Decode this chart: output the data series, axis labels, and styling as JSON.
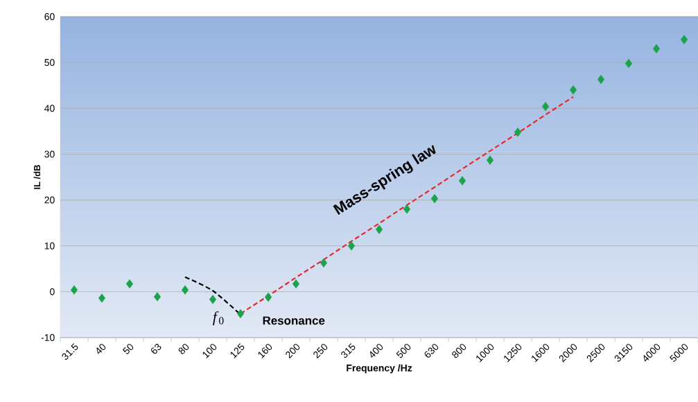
{
  "chart_data": {
    "type": "scatter",
    "xlabel": "Frequency /Hz",
    "ylabel": "IL /dB",
    "categories": [
      "31.5",
      "40",
      "50",
      "63",
      "80",
      "100",
      "125",
      "160",
      "200",
      "250",
      "315",
      "400",
      "500",
      "630",
      "800",
      "1000",
      "1250",
      "1600",
      "2000",
      "2500",
      "3150",
      "4000",
      "5000"
    ],
    "series": [
      {
        "color": "#1aa34a",
        "marker": "diamond",
        "values": [
          0.4,
          -1.4,
          1.7,
          -1.1,
          0.4,
          -1.7,
          -4.8,
          -1.2,
          1.7,
          6.3,
          10,
          13.6,
          18,
          20.3,
          24.2,
          28.7,
          34.8,
          40.4,
          44,
          46.3,
          49.8,
          53,
          55
        ]
      },
      {
        "type": "line",
        "color": "#e8272a",
        "line_style": "dashed",
        "marker": "none",
        "values": [
          null,
          null,
          null,
          null,
          null,
          null,
          -4.8,
          -0.9,
          3.1,
          7.0,
          11.0,
          14.9,
          18.9,
          22.8,
          26.8,
          30.7,
          34.6,
          38.6,
          42.5,
          null,
          null,
          null,
          null
        ]
      },
      {
        "type": "line",
        "color": "#000000",
        "line_style": "dashed",
        "marker": "none",
        "values": [
          null,
          null,
          null,
          null,
          3.2,
          0.2,
          -5,
          null,
          null,
          null,
          null,
          null,
          null,
          null,
          null,
          null,
          null,
          null,
          null,
          null,
          null,
          null,
          null
        ]
      }
    ],
    "ylim": [
      -10,
      60
    ],
    "yticks": [
      -10,
      0,
      10,
      20,
      30,
      40,
      50,
      60
    ],
    "grid": "y",
    "annotations": [
      "Mass-spring law",
      {
        "text": "Resonance",
        "x": "125",
        "y": -6
      },
      "*f*$_{0}$"
    ]
  }
}
